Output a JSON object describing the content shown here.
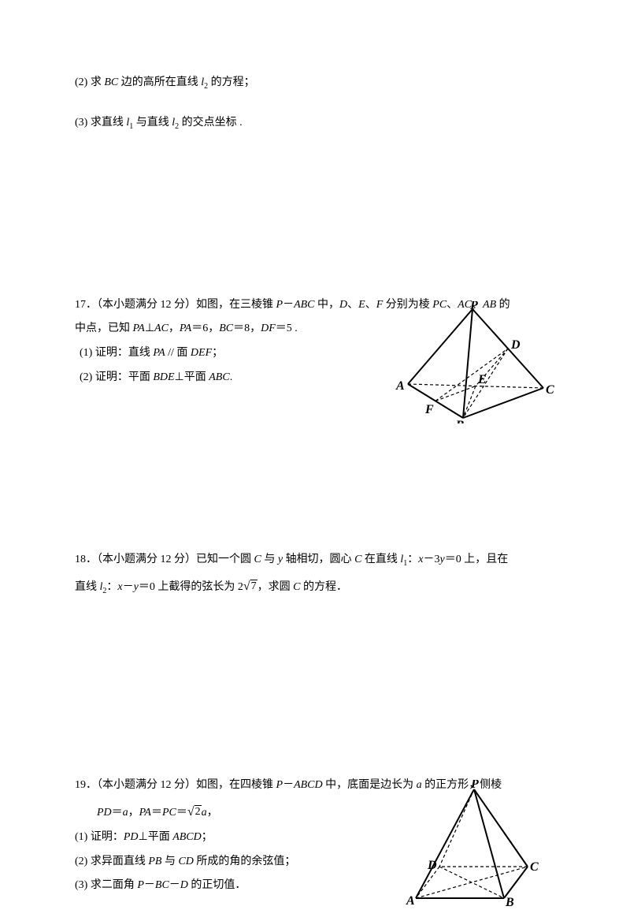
{
  "q_pre": {
    "line2": "(2)  求 <i>BC</i> 边的高所在直线 <i>l</i><sub>2</sub> 的方程；",
    "line3": "(3)  求直线 <i>l</i><sub>1</sub> 与直线 <i>l</i><sub>2</sub> 的交点坐标 ."
  },
  "q17": {
    "intro": "17．（本小题满分 12 分）如图，在三棱锥 <i>P</i>－<i>ABC</i> 中，<i>D</i>、<i>E</i>、<i>F</i> 分别为棱 <i>PC</i>、<i>AC</i>、<i>AB</i> 的",
    "intro2": "中点，已知 <i>PA</i>⊥<i>AC</i>，<i>PA</i>＝6，<i>BC</i>＝8，<i>DF</i>＝5 .",
    "p1": " (1)  证明：直线 <i>PA</i> // 面 <i>DEF</i>；",
    "p2": " (2)  证明：平面 <i>BDE</i>⊥平面 <i>ABC</i>.",
    "labels": {
      "P": "P",
      "A": "A",
      "B": "B",
      "C": "C",
      "D": "D",
      "E": "E",
      "F": "F"
    }
  },
  "q18": {
    "intro": "18．（本小题满分 12 分）已知一个圆 <i>C</i> 与 <i>y</i> 轴相切，圆心 <i>C</i> 在直线 <i>l</i><sub>1</sub>：<i>x</i>－3<i>y</i>＝0  上，且在",
    "intro2_pre": "直线 <i>l</i><sub>2</sub>：<i>x</i>－<i>y</i>＝0 上截得的弦长为 2",
    "intro2_sqrt": "7",
    "intro2_post": "，求圆 <i>C</i> 的方程．"
  },
  "q19": {
    "intro": "19．（本小题满分 12 分）如图，在四棱锥 <i>P</i>－<i>ABCD</i> 中，底面是边长为 <i>a</i> 的正方形，侧棱",
    "intro2_pre": "<i>PD</i>＝<i>a</i>，<i>PA</i>＝<i>PC</i>＝",
    "intro2_sqrt": "2",
    "intro2_post": "<i>a</i>，",
    "p1": "(1)  证明：<i>PD</i>⊥平面 <i>ABCD</i>；",
    "p2": "(2)  求异面直线 <i>PB</i> 与 <i>CD</i> 所成的角的余弦值；",
    "p3": "(3)  求二面角 <i>P</i>－<i>BC</i>－<i>D</i> 的正切值．",
    "labels": {
      "P": "P",
      "A": "A",
      "B": "B",
      "C": "C",
      "D": "D"
    }
  },
  "style": {
    "body_fontsize": 14,
    "label_fontsize": 16,
    "color_text": "#000000",
    "color_bg": "#ffffff",
    "line_solid_w": 1.5,
    "line_solid2_w": 2,
    "line_dash_w": 1.2,
    "dash_pattern": "4 3"
  }
}
